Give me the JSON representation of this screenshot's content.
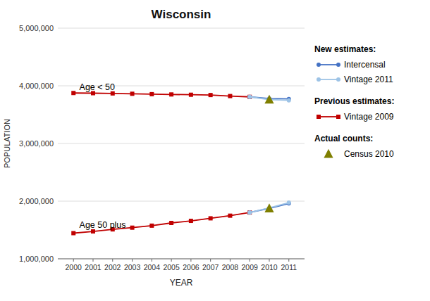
{
  "chart_data": {
    "type": "line",
    "title": "Wisconsin",
    "xlabel": "YEAR",
    "ylabel": "POPULATION",
    "xlim": [
      1999.2,
      2011.8
    ],
    "xticks": [
      2000,
      2001,
      2002,
      2003,
      2004,
      2005,
      2006,
      2007,
      2008,
      2009,
      2010,
      2011
    ],
    "ylim": [
      1000000,
      5000000
    ],
    "yticks": [
      {
        "value": 1000000,
        "label": "1,000,000"
      },
      {
        "value": 2000000,
        "label": "2,000,000"
      },
      {
        "value": 3000000,
        "label": "3,000,000"
      },
      {
        "value": 4000000,
        "label": "4,000,000"
      },
      {
        "value": 5000000,
        "label": "5,000,000"
      }
    ],
    "grid": true,
    "series": [
      {
        "name": "Vintage 2009",
        "color": "#C00000",
        "marker": "square",
        "x": [
          2000,
          2001,
          2002,
          2003,
          2004,
          2005,
          2006,
          2007,
          2008,
          2009
        ],
        "values": [
          3875000,
          3872000,
          3868000,
          3862000,
          3855000,
          3850000,
          3845000,
          3840000,
          3822000,
          3808000
        ]
      },
      {
        "name": "Intercensal",
        "color": "#4472C4",
        "marker": "circle",
        "x": [
          2009,
          2010,
          2011
        ],
        "values": [
          3808000,
          3778000,
          3772000
        ]
      },
      {
        "name": "Vintage 2011",
        "color": "#9DC3E6",
        "marker": "circle",
        "x": [
          2009,
          2010,
          2011
        ],
        "values": [
          3808000,
          3762000,
          3748000
        ]
      },
      {
        "name": "Census 2010",
        "color": "#7F7F00",
        "marker": "triangle",
        "type": "scatter",
        "x": [
          2010
        ],
        "values": [
          3758000
        ]
      },
      {
        "name": "Vintage 2009",
        "color": "#C00000",
        "marker": "square",
        "x": [
          2000,
          2001,
          2002,
          2003,
          2004,
          2005,
          2006,
          2007,
          2008,
          2009
        ],
        "values": [
          1445000,
          1475000,
          1510000,
          1540000,
          1575000,
          1622000,
          1658000,
          1702000,
          1748000,
          1802000
        ]
      },
      {
        "name": "Intercensal",
        "color": "#4472C4",
        "marker": "circle",
        "x": [
          2009,
          2010,
          2011
        ],
        "values": [
          1802000,
          1875000,
          1960000
        ]
      },
      {
        "name": "Vintage 2011",
        "color": "#9DC3E6",
        "marker": "circle",
        "x": [
          2009,
          2010,
          2011
        ],
        "values": [
          1802000,
          1882000,
          1975000
        ]
      },
      {
        "name": "Census 2010",
        "color": "#7F7F00",
        "marker": "triangle",
        "type": "scatter",
        "x": [
          2010
        ],
        "values": [
          1872000
        ]
      }
    ],
    "annotations": [
      {
        "text": "Age < 50",
        "x": 2000.3,
        "y": 3930000
      },
      {
        "text": "Age 50 plus",
        "x": 2000.3,
        "y": 1540000
      }
    ],
    "legend_groups": [
      {
        "title": "New estimates:",
        "entries": [
          "Intercensal",
          "Vintage 2011"
        ]
      },
      {
        "title": "Previous estimates:",
        "entries": [
          "Vintage 2009"
        ]
      },
      {
        "title": "Actual counts:",
        "entries": [
          "Census 2010"
        ]
      }
    ]
  }
}
